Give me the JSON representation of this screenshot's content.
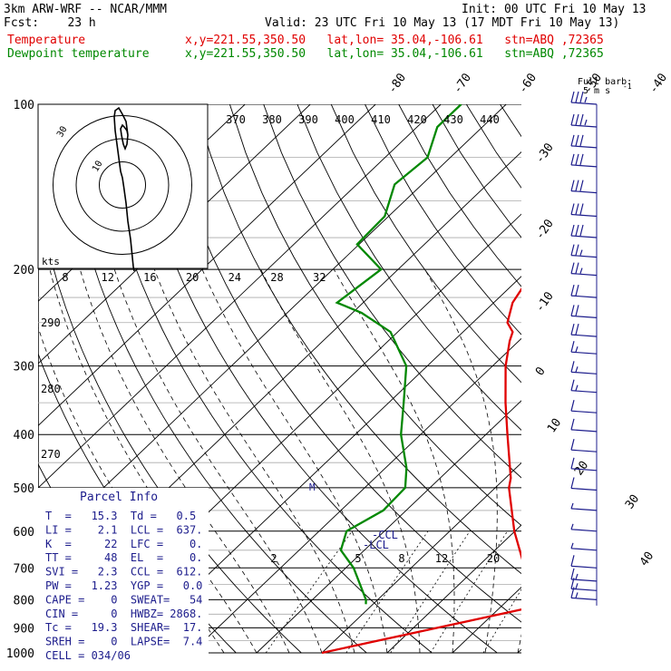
{
  "header": {
    "model": "3km ARW-WRF -- NCAR/MMM",
    "init": "Init: 00 UTC Fri 10 May 13",
    "fcst": "Fcst:    23 h",
    "valid": "Valid: 23 UTC Fri 10 May 13 (17 MDT Fri 10 May 13)",
    "temp_label": "Temperature",
    "temp_loc": "x,y=221.55,350.50   lat,lon= 35.04,-106.61   stn=ABQ ,72365",
    "dew_label": "Dewpoint temperature",
    "dew_loc": "x,y=221.55,350.50   lat,lon= 35.04,-106.61   stn=ABQ ,72365"
  },
  "colors": {
    "temperature": "#e00000",
    "dewpoint": "#008800",
    "wind": "#1c1c8c",
    "grid": "#000000",
    "dashed": "#000000"
  },
  "barb_legend": {
    "line1": "Full barb:",
    "line2": "5 m s",
    "sup": "-1"
  },
  "pressure_labels": [
    "100",
    "200",
    "300",
    "400",
    "500",
    "600",
    "700",
    "800",
    "900",
    "1000"
  ],
  "isotherm_labels_top": [
    "-80",
    "-70",
    "-60",
    "-50",
    "-40"
  ],
  "isotherm_labels_right": [
    "-30",
    "-20",
    "-10",
    "0",
    "10",
    "20",
    "30",
    "40"
  ],
  "theta_labels_top": [
    "370",
    "380",
    "390",
    "400",
    "410",
    "420",
    "430",
    "440"
  ],
  "theta_labels_left": [
    "290",
    "280",
    "270"
  ],
  "mixing_ratio_labels": [
    "2",
    "5",
    "8",
    "12",
    "20"
  ],
  "hodo_speed_labels": [
    "8",
    "12",
    "16",
    "20",
    "24",
    "28",
    "32"
  ],
  "hodo_units": "kts",
  "hodo_ring_label": "30",
  "hodo_ring_label_inner": "10",
  "lcl_labels": [
    "-CCL",
    "-LCL"
  ],
  "parcel_marker": "M",
  "parcel": {
    "title": "Parcel  Info",
    "rows": [
      "T  =   15.3  Td =   0.5",
      "LI =    2.1  LCL =  637.",
      "K  =     22  LFC =    0.",
      "TT =     48  EL  =    0.",
      "SVI =   2.3  CCL =  612.",
      "PW =   1.23  YGP =   0.0",
      "CAPE =    0  SWEAT=   54",
      "CIN =     0  HWBZ= 2868.",
      "Tc =   19.3  SHEAR=  17.",
      "SREH =    0  LAPSE=  7.4",
      "CELL = 034/06"
    ]
  },
  "chart_data": {
    "type": "line",
    "title": "",
    "xlabel": "",
    "ylabel": "",
    "y_scale": "log-pressure",
    "ylim": [
      1000,
      100
    ],
    "series": [
      {
        "name": "Temperature",
        "color": "#e00000",
        "points": [
          [
            1000,
            0
          ],
          [
            815,
            26.5
          ],
          [
            800,
            24.5
          ],
          [
            700,
            17.4
          ],
          [
            600,
            9.9
          ],
          [
            500,
            2.1
          ],
          [
            480,
            0.8
          ],
          [
            400,
            -6.7
          ],
          [
            350,
            -12.1
          ],
          [
            300,
            -18.0
          ],
          [
            270,
            -21.4
          ],
          [
            260,
            -22.4
          ],
          [
            250,
            -24.7
          ],
          [
            230,
            -27.1
          ],
          [
            210,
            -28.4
          ],
          [
            200,
            -30.9
          ],
          [
            180,
            -32.8
          ],
          [
            150,
            -38.2
          ],
          [
            125,
            -42.0
          ],
          [
            115,
            -43.1
          ],
          [
            100,
            -45.6
          ]
        ]
      },
      {
        "name": "Dewpoint temperature",
        "color": "#008800",
        "points": [
          [
            815,
            -1.1
          ],
          [
            800,
            -1.8
          ],
          [
            700,
            -8.8
          ],
          [
            650,
            -13.6
          ],
          [
            600,
            -15.8
          ],
          [
            550,
            -13.5
          ],
          [
            500,
            -13.8
          ],
          [
            460,
            -16.8
          ],
          [
            400,
            -23.0
          ],
          [
            350,
            -27.7
          ],
          [
            300,
            -33.2
          ],
          [
            260,
            -41.1
          ],
          [
            240,
            -48.6
          ],
          [
            230,
            -54.0
          ],
          [
            200,
            -52.6
          ],
          [
            180,
            -60.3
          ],
          [
            160,
            -60.6
          ],
          [
            140,
            -64.2
          ],
          [
            125,
            -63.5
          ],
          [
            110,
            -66.9
          ],
          [
            100,
            -66.9
          ]
        ]
      }
    ],
    "wind_barbs": [
      {
        "p": 100,
        "speed_kt": 35
      },
      {
        "p": 110,
        "speed_kt": 35
      },
      {
        "p": 120,
        "speed_kt": 30
      },
      {
        "p": 130,
        "speed_kt": 30
      },
      {
        "p": 145,
        "speed_kt": 30
      },
      {
        "p": 160,
        "speed_kt": 30
      },
      {
        "p": 175,
        "speed_kt": 30
      },
      {
        "p": 190,
        "speed_kt": 25
      },
      {
        "p": 205,
        "speed_kt": 25
      },
      {
        "p": 225,
        "speed_kt": 20
      },
      {
        "p": 245,
        "speed_kt": 20
      },
      {
        "p": 265,
        "speed_kt": 20
      },
      {
        "p": 285,
        "speed_kt": 15
      },
      {
        "p": 310,
        "speed_kt": 15
      },
      {
        "p": 335,
        "speed_kt": 15
      },
      {
        "p": 365,
        "speed_kt": 10
      },
      {
        "p": 395,
        "speed_kt": 10
      },
      {
        "p": 430,
        "speed_kt": 10
      },
      {
        "p": 465,
        "speed_kt": 10
      },
      {
        "p": 505,
        "speed_kt": 10
      },
      {
        "p": 550,
        "speed_kt": 5
      },
      {
        "p": 600,
        "speed_kt": 5
      },
      {
        "p": 650,
        "speed_kt": 5
      },
      {
        "p": 700,
        "speed_kt": 10
      },
      {
        "p": 740,
        "speed_kt": 15
      },
      {
        "p": 770,
        "speed_kt": 15
      },
      {
        "p": 800,
        "speed_kt": 15
      }
    ],
    "hodograph": [
      [
        13,
        -95
      ],
      [
        12,
        -90
      ],
      [
        11,
        -80
      ],
      [
        9,
        -60
      ],
      [
        6,
        -40
      ],
      [
        4,
        -20
      ],
      [
        1.5,
        -2
      ],
      [
        0,
        8
      ],
      [
        -2,
        15
      ],
      [
        -4,
        30
      ],
      [
        -6,
        45
      ],
      [
        -8,
        60
      ],
      [
        -9,
        75
      ],
      [
        -8,
        82
      ],
      [
        -4,
        85
      ],
      [
        0,
        78
      ],
      [
        4,
        70
      ],
      [
        6,
        55
      ],
      [
        5,
        45
      ],
      [
        3,
        40
      ],
      [
        1,
        45
      ],
      [
        -1,
        55
      ],
      [
        -2,
        62
      ],
      [
        0,
        66
      ],
      [
        2,
        64
      ],
      [
        5,
        60
      ],
      [
        6,
        55
      ]
    ]
  }
}
